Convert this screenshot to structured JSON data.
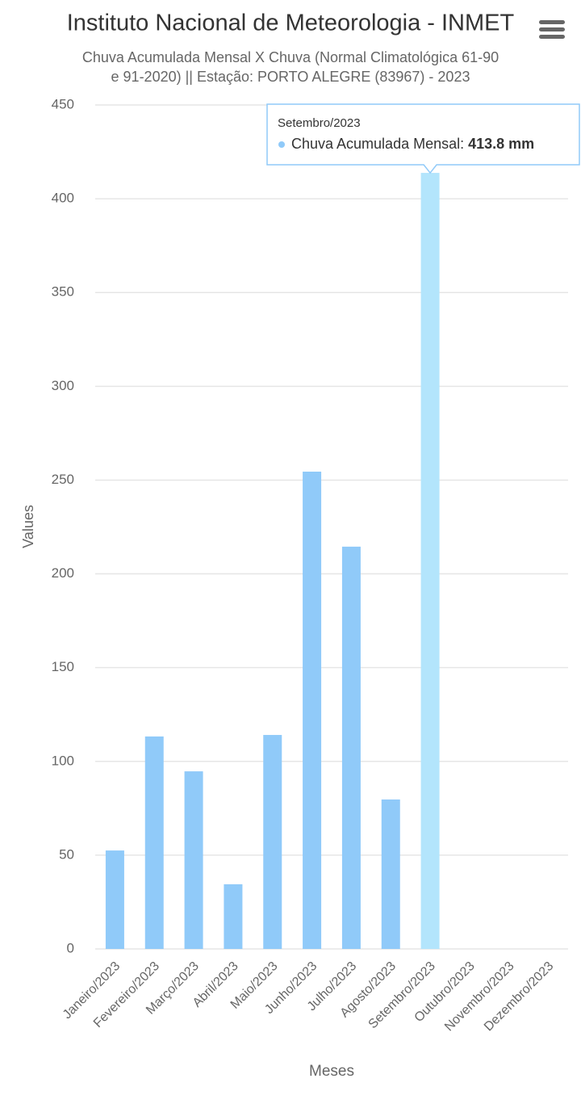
{
  "chart_data": {
    "type": "bar",
    "title": "Instituto Nacional de Meteorologia - INMET",
    "subtitle": [
      "Chuva Acumulada Mensal X Chuva (Normal Climatológica 61-90",
      "e 91-2020) || Estação: PORTO ALEGRE (83967) - 2023"
    ],
    "x_label": "Meses",
    "y_label": "Values",
    "categories": [
      "Janeiro/2023",
      "Fevereiro/2023",
      "Março/2023",
      "Abril/2023",
      "Maio/2023",
      "Junho/2023",
      "Julho/2023",
      "Agosto/2023",
      "Setembro/2023",
      "Outubro/2023",
      "Novembro/2023",
      "Dezembro/2023"
    ],
    "values": [
      52.5,
      113.3,
      94.7,
      34.5,
      114.1,
      254.5,
      214.5,
      79.7,
      413.8,
      null,
      null,
      null
    ],
    "color": "#90caf9",
    "hover_color": "#b3e5fc",
    "ylim": [
      0,
      450
    ],
    "yticks": [
      0,
      50,
      100,
      150,
      200,
      250,
      300,
      350,
      400,
      450
    ],
    "grid": true,
    "tooltip": {
      "header": "Setembro/2023",
      "series_label": "Chuva Acumulada Mensal: ",
      "value_label": "413.8 mm"
    }
  }
}
